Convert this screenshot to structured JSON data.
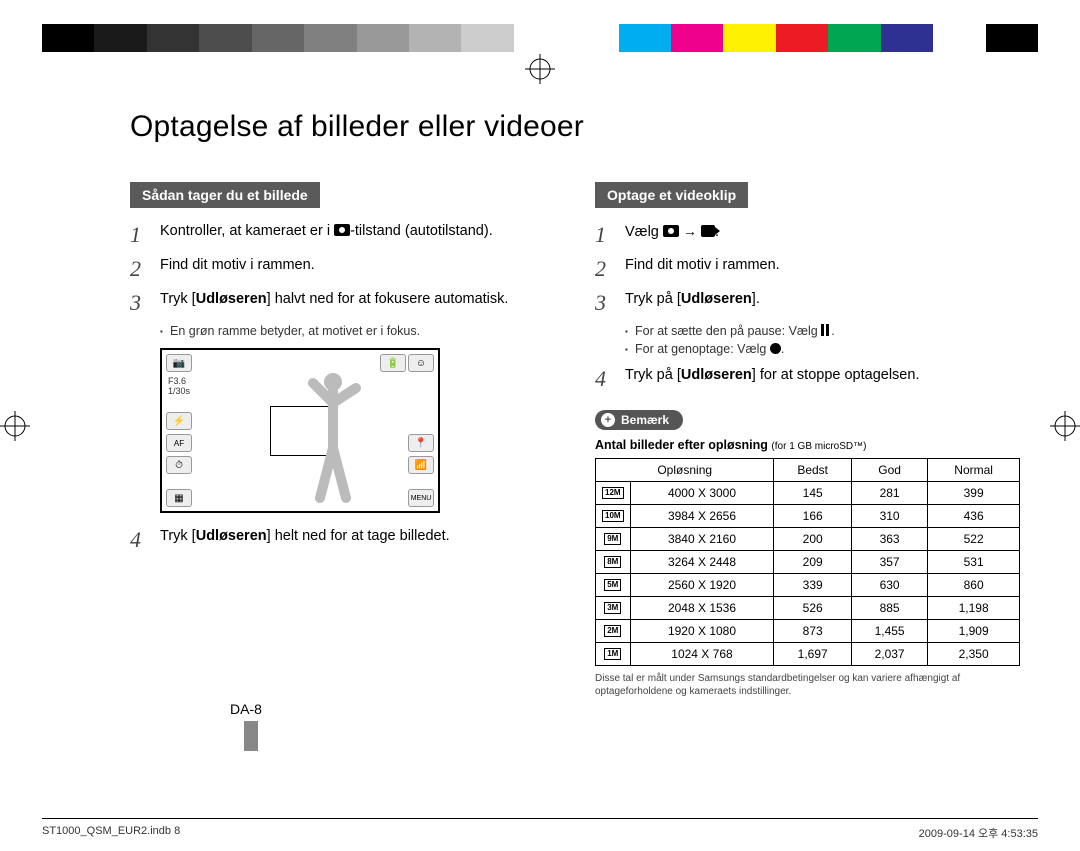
{
  "calibration_colors": [
    "#000000",
    "#1a1a1a",
    "#333333",
    "#4d4d4d",
    "#666666",
    "#808080",
    "#999999",
    "#b3b3b3",
    "#cccccc",
    "#ffffff",
    "#ffffff",
    "#00aeef",
    "#ec008c",
    "#fff200",
    "#ed1c24",
    "#00a651",
    "#2e3192",
    "#ffffff",
    "#000000"
  ],
  "page_title": "Optagelse af billeder eller videoer",
  "left": {
    "header": "Sådan tager du et billede",
    "steps": [
      {
        "n": "1",
        "text_pre": "Kontroller, at kameraet er i ",
        "text_post": "-tilstand (autotilstand)."
      },
      {
        "n": "2",
        "text": "Find dit motiv i rammen."
      },
      {
        "n": "3",
        "text_pre": "Tryk [",
        "bold": "Udløseren",
        "text_post": "] halvt ned for at fokusere automatisk."
      }
    ],
    "bullet3": "En grøn ramme betyder, at motivet er i fokus.",
    "lcd": {
      "f": "F3.6",
      "shutter": "1/30s"
    },
    "step4_pre": "Tryk [",
    "step4_bold": "Udløseren",
    "step4_post": "] helt ned for at tage billedet."
  },
  "right": {
    "header": "Optage et videoklip",
    "step1": "Vælg ",
    "step2": "Find dit motiv i rammen.",
    "step3_pre": "Tryk på [",
    "step3_bold": "Udløseren",
    "step3_post": "].",
    "bullet_pause": "For at sætte den på pause: Vælg ",
    "bullet_resume": "For at genoptage: Vælg ",
    "step4_pre": "Tryk på [",
    "step4_bold": "Udløseren",
    "step4_post": "] for at stoppe optagelsen.",
    "note_label": "Bemærk",
    "table_title_bold": "Antal billeder efter opløsning",
    "table_title_small": "(for 1 GB microSD™)",
    "columns": [
      "Opløsning",
      "Bedst",
      "God",
      "Normal"
    ],
    "rows": [
      {
        "badge": "12M",
        "res": "4000 X 3000",
        "b": "145",
        "g": "281",
        "n": "399"
      },
      {
        "badge": "10M",
        "res": "3984 X 2656",
        "b": "166",
        "g": "310",
        "n": "436"
      },
      {
        "badge": "9M",
        "res": "3840 X 2160",
        "b": "200",
        "g": "363",
        "n": "522"
      },
      {
        "badge": "8M",
        "res": "3264 X 2448",
        "b": "209",
        "g": "357",
        "n": "531"
      },
      {
        "badge": "5M",
        "res": "2560 X 1920",
        "b": "339",
        "g": "630",
        "n": "860"
      },
      {
        "badge": "3M",
        "res": "2048 X 1536",
        "b": "526",
        "g": "885",
        "n": "1,198"
      },
      {
        "badge": "2M",
        "res": "1920 X 1080",
        "b": "873",
        "g": "1,455",
        "n": "1,909"
      },
      {
        "badge": "1M",
        "res": "1024 X 768",
        "b": "1,697",
        "g": "2,037",
        "n": "2,350"
      }
    ],
    "disclaimer": "Disse tal er målt under Samsungs standardbetingelser og kan variere afhængigt af optageforholdene og kameraets indstillinger."
  },
  "page_number": "DA-8",
  "print_left": "ST1000_QSM_EUR2.indb   8",
  "print_right": "2009-09-14   오후 4:53:35"
}
